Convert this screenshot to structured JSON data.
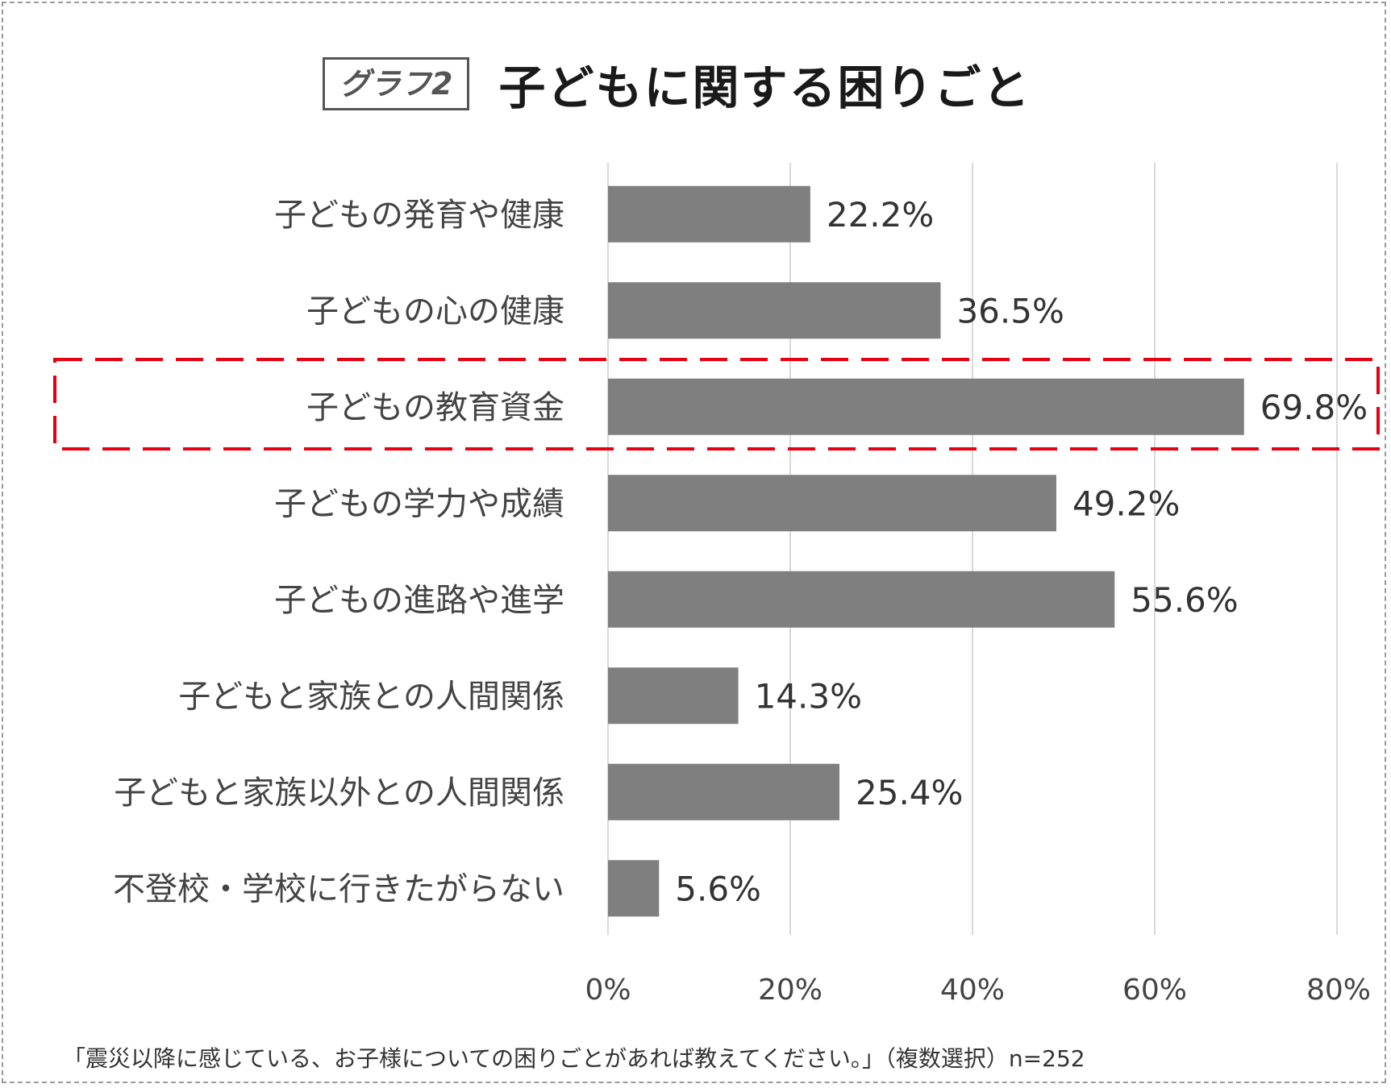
{
  "badge": "グラフ2",
  "title": "子どもに関する困りごと",
  "footnote": "「震災以降に感じている、お子様についての困りごとがあれば教えてください。」（複数選択）n=252",
  "colors": {
    "bar": "#7f7f7f",
    "grid": "#d9d9d9",
    "highlight": "#e60012"
  },
  "highlight_category": "子どもの教育資金",
  "chart_data": {
    "type": "bar",
    "orientation": "horizontal",
    "categories": [
      "子どもの発育や健康",
      "子どもの心の健康",
      "子どもの教育資金",
      "子どもの学力や成績",
      "子どもの進路や進学",
      "子どもと家族との人間関係",
      "子どもと家族以外との人間関係",
      "不登校・学校に行きたがらない"
    ],
    "values": [
      22.2,
      36.5,
      69.8,
      49.2,
      55.6,
      14.3,
      25.4,
      5.6
    ],
    "value_labels": [
      "22.2%",
      "36.5%",
      "69.8%",
      "49.2%",
      "55.6%",
      "14.3%",
      "25.4%",
      "5.6%"
    ],
    "xlim": [
      0,
      80
    ],
    "x_ticks": [
      0,
      20,
      40,
      60,
      80
    ],
    "x_tick_labels": [
      "0%",
      "20%",
      "40%",
      "60%",
      "80%"
    ],
    "grid": true
  }
}
